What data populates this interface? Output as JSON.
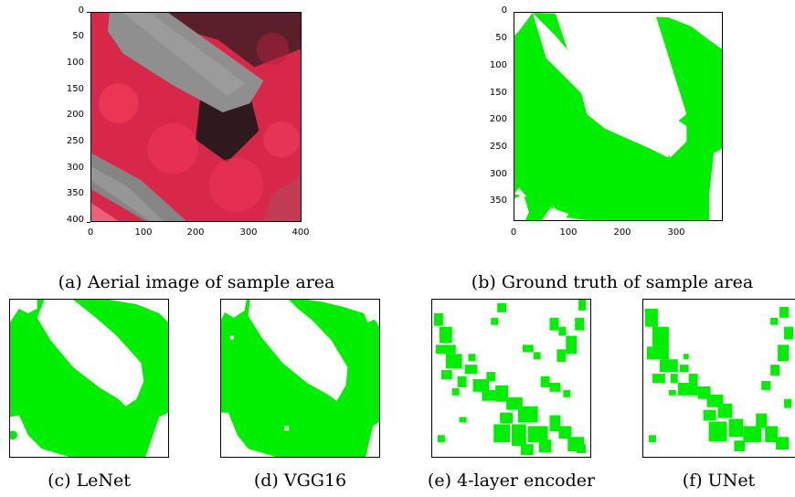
{
  "figure": {
    "panel_a": {
      "caption": "(a) Aerial image of sample area",
      "y_ticks": [
        "0",
        "50",
        "100",
        "150",
        "200",
        "250",
        "300",
        "350",
        "400"
      ],
      "x_ticks": [
        "0",
        "100",
        "200",
        "300",
        "400"
      ]
    },
    "panel_b": {
      "caption": "(b) Ground truth of sample area",
      "y_ticks": [
        "0",
        "50",
        "100",
        "150",
        "200",
        "250",
        "300",
        "350"
      ],
      "x_ticks": [
        "0",
        "100",
        "200",
        "300"
      ]
    },
    "panel_c": {
      "caption": "(c) LeNet"
    },
    "panel_d": {
      "caption": "(d) VGG16"
    },
    "panel_e": {
      "caption": "(e) 4-layer encoder"
    },
    "panel_f": {
      "caption": "(f) UNet"
    }
  },
  "colors": {
    "mask_green": "#00ee00",
    "vegetation_red": "#e8264a",
    "road_gray": "#8a8a8a",
    "shadow_dark": "#3a1a1e"
  }
}
